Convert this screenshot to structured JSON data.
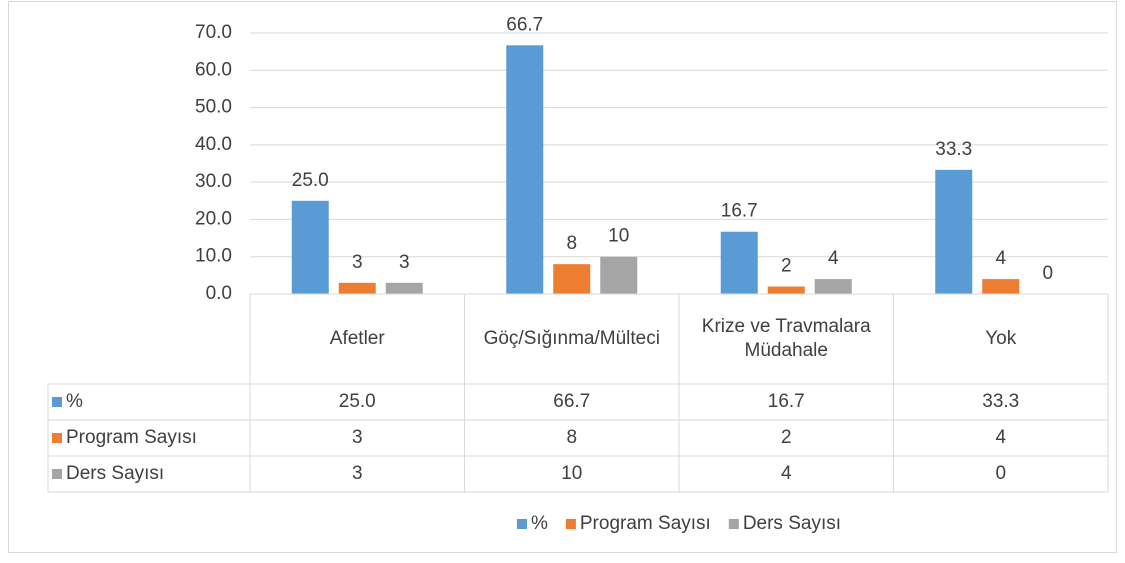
{
  "chart_data": {
    "type": "bar",
    "categories": [
      "Afetler",
      "Göç/Sığınma/Mülteci",
      "Krize ve Travmalara Müdahale",
      "Yok"
    ],
    "series": [
      {
        "name": "%",
        "color": "#5b9bd5",
        "values": [
          25.0,
          66.7,
          16.7,
          33.3
        ],
        "value_labels": [
          "25.0",
          "66.7",
          "16.7",
          "33.3"
        ]
      },
      {
        "name": "Program Sayısı",
        "color": "#ed7d31",
        "values": [
          3,
          8,
          2,
          4
        ]
      },
      {
        "name": "Ders Sayısı",
        "color": "#a5a5a5",
        "values": [
          3,
          10,
          4,
          0
        ]
      }
    ],
    "ylim": [
      0,
      70
    ],
    "yticks": [
      {
        "value": 0,
        "label": "0.0"
      },
      {
        "value": 10,
        "label": "10.0"
      },
      {
        "value": 20,
        "label": "20.0"
      },
      {
        "value": 30,
        "label": "30.0"
      },
      {
        "value": 40,
        "label": "40.0"
      },
      {
        "value": 50,
        "label": "50.0"
      },
      {
        "value": 60,
        "label": "60.0"
      },
      {
        "value": 70,
        "label": "70.0"
      }
    ],
    "grid": true,
    "legend": "bottom",
    "data_table": true
  }
}
